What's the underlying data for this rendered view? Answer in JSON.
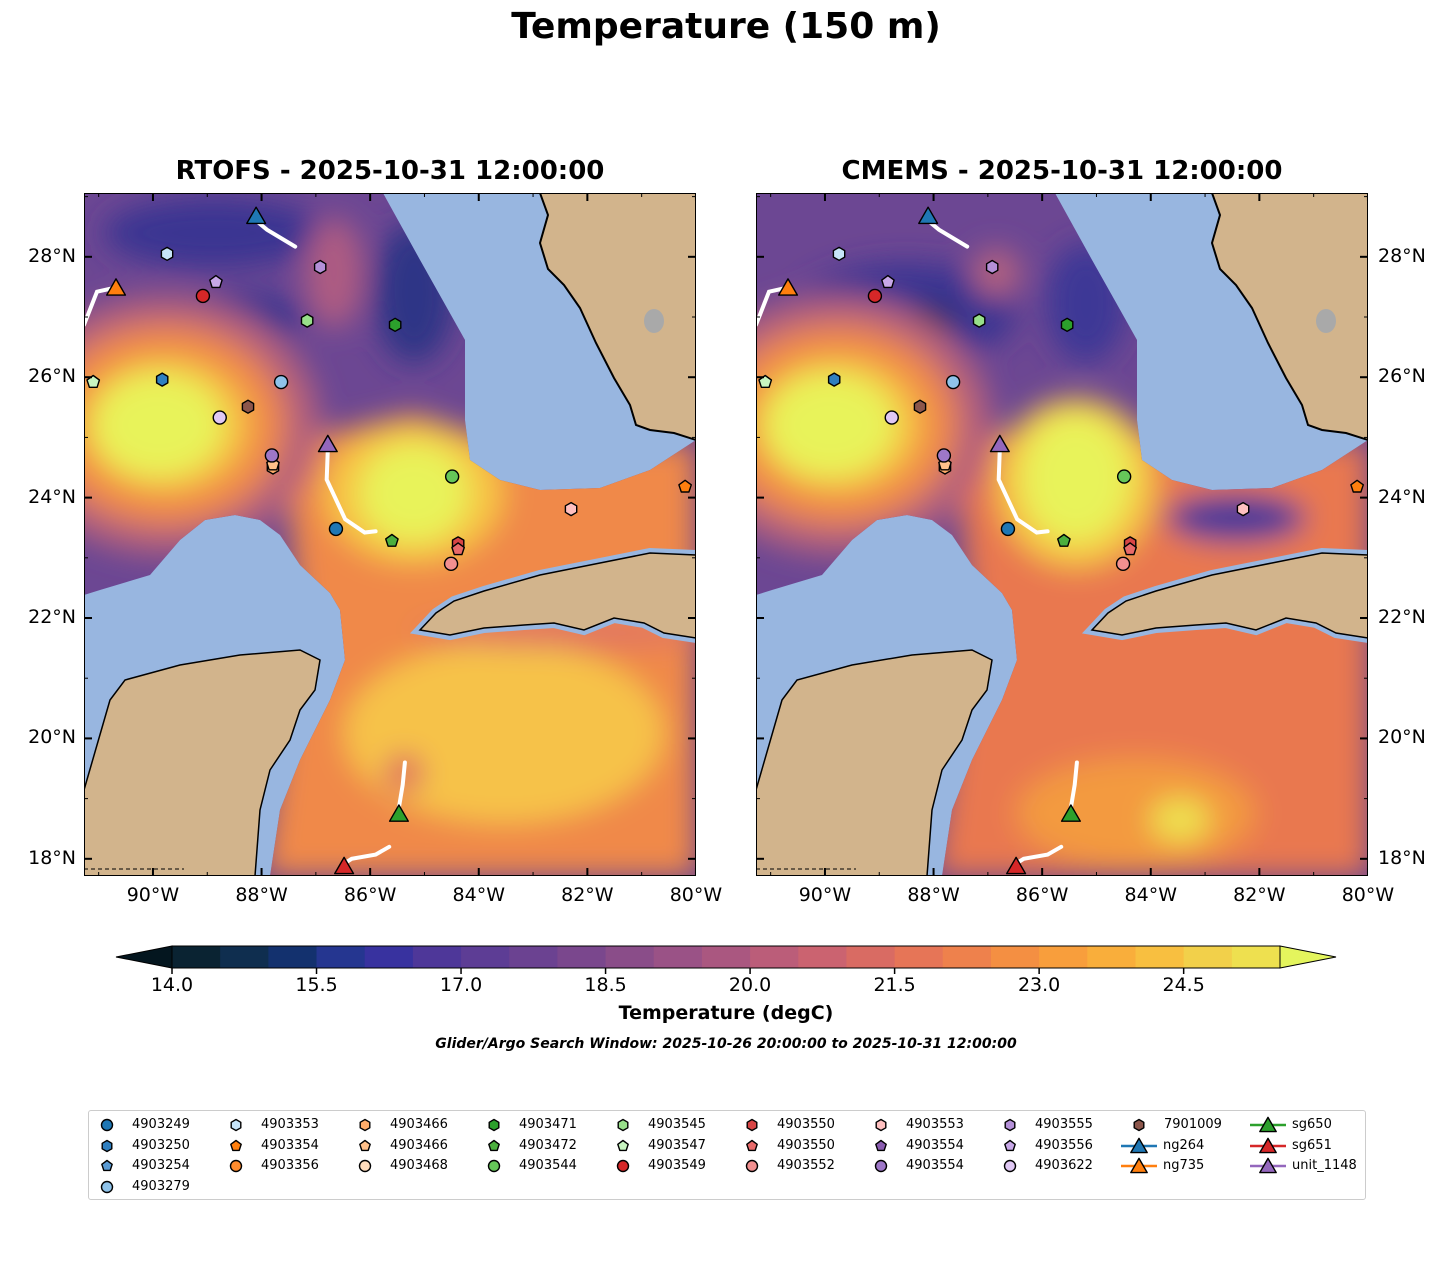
{
  "title": "Temperature (150 m)",
  "maps": [
    {
      "title": "RTOFS - 2025-10-31 12:00:00"
    },
    {
      "title": "CMEMS - 2025-10-31 12:00:00"
    }
  ],
  "axes": {
    "lon_labels": [
      "90°W",
      "88°W",
      "86°W",
      "84°W",
      "82°W",
      "80°W"
    ],
    "lon_values": [
      -90,
      -88,
      -86,
      -84,
      -82,
      -80
    ],
    "lat_labels": [
      "28°N",
      "26°N",
      "24°N",
      "22°N",
      "20°N",
      "18°N"
    ],
    "lat_values": [
      28,
      26,
      24,
      22,
      20,
      18
    ],
    "lon_range": [
      -91.27,
      -80
    ],
    "lat_range": [
      17.72,
      29.06
    ]
  },
  "colorbar": {
    "label": "Temperature (degC)",
    "min": 14.0,
    "max": 25.5,
    "step": 0.5,
    "tick_labels": [
      "14.0",
      "15.5",
      "17.0",
      "18.5",
      "20.0",
      "21.5",
      "23.0",
      "24.5"
    ],
    "colors": [
      "#0a2332",
      "#0f2e4f",
      "#13316e",
      "#253690",
      "#38329f",
      "#4e3799",
      "#5d3d95",
      "#6b4291",
      "#7a478d",
      "#8a4d89",
      "#9a5286",
      "#aa5780",
      "#bb5d79",
      "#cb6370",
      "#d96b63",
      "#e67557",
      "#ee814c",
      "#f48f42",
      "#f89e3c",
      "#f9ae3b",
      "#f8bf40",
      "#f2d04a",
      "#eee04f"
    ],
    "under_color": "#04161f",
    "over_color": "#e4f55d"
  },
  "search_window": "Glider/Argo Search Window: 2025-10-26 20:00:00 to 2025-10-31 12:00:00",
  "legend": {
    "columns": [
      [
        {
          "label": "4903249",
          "shape": "circle",
          "color": "#1f77b4"
        },
        {
          "label": "4903250",
          "shape": "hexagon",
          "color": "#2f7fc0"
        },
        {
          "label": "4903254",
          "shape": "pentagon",
          "color": "#5a9bd4"
        },
        {
          "label": "4903279",
          "shape": "circle",
          "color": "#8fc3ea"
        }
      ],
      [
        {
          "label": "4903353",
          "shape": "hexagon",
          "color": "#c6e4f8"
        },
        {
          "label": "4903354",
          "shape": "pentagon",
          "color": "#ff7f0e"
        },
        {
          "label": "4903356",
          "shape": "circle",
          "color": "#ff8c2e"
        }
      ],
      [
        {
          "label": "4903466",
          "shape": "hexagon",
          "color": "#ffac6a"
        },
        {
          "label": "4903466",
          "shape": "pentagon",
          "color": "#ffc08a"
        },
        {
          "label": "4903468",
          "shape": "circle",
          "color": "#ffdcbc"
        }
      ],
      [
        {
          "label": "4903471",
          "shape": "hexagon",
          "color": "#2ca02c"
        },
        {
          "label": "4903472",
          "shape": "pentagon",
          "color": "#4caf3e"
        },
        {
          "label": "4903544",
          "shape": "circle",
          "color": "#66c659"
        }
      ],
      [
        {
          "label": "4903545",
          "shape": "hexagon",
          "color": "#98df8a"
        },
        {
          "label": "4903547",
          "shape": "pentagon",
          "color": "#c8f5c0"
        },
        {
          "label": "4903549",
          "shape": "circle",
          "color": "#d62728"
        }
      ],
      [
        {
          "label": "4903550",
          "shape": "hexagon",
          "color": "#d84545"
        },
        {
          "label": "4903550",
          "shape": "pentagon",
          "color": "#e86a6a"
        },
        {
          "label": "4903552",
          "shape": "circle",
          "color": "#f29090"
        }
      ],
      [
        {
          "label": "4903553",
          "shape": "hexagon",
          "color": "#ffc0c0"
        },
        {
          "label": "4903554",
          "shape": "pentagon",
          "color": "#8a5cb0"
        },
        {
          "label": "4903554",
          "shape": "circle",
          "color": "#9e77c8"
        }
      ],
      [
        {
          "label": "4903555",
          "shape": "hexagon",
          "color": "#b490d8"
        },
        {
          "label": "4903556",
          "shape": "pentagon",
          "color": "#c8a8e8"
        },
        {
          "label": "4903622",
          "shape": "circle",
          "color": "#e0c8f4"
        }
      ],
      [
        {
          "label": "7901009",
          "shape": "hexagon",
          "color": "#8c564b"
        },
        {
          "label": "ng264",
          "shape": "triangle",
          "color": "#1f77b4",
          "line": true
        },
        {
          "label": "ng735",
          "shape": "triangle",
          "color": "#ff7f0e",
          "line": true
        }
      ],
      [
        {
          "label": "sg650",
          "shape": "triangle",
          "color": "#2ca02c",
          "line": true
        },
        {
          "label": "sg651",
          "shape": "triangle",
          "color": "#d62728",
          "line": true
        },
        {
          "label": "unit_1148",
          "shape": "triangle",
          "color": "#9467bd",
          "line": true
        }
      ]
    ]
  },
  "markers": [
    {
      "id": "4903353",
      "shape": "hexagon",
      "color": "#c6e4f8",
      "lon": -89.74,
      "lat": 28.05
    },
    {
      "id": "4903556",
      "shape": "pentagon",
      "color": "#c8a8e8",
      "lon": -88.84,
      "lat": 27.58
    },
    {
      "id": "4903549",
      "shape": "circle",
      "color": "#d62728",
      "lon": -89.08,
      "lat": 27.35
    },
    {
      "id": "4903555",
      "shape": "hexagon",
      "color": "#b490d8",
      "lon": -86.92,
      "lat": 27.83
    },
    {
      "id": "4903545",
      "shape": "hexagon",
      "color": "#98df8a",
      "lon": -87.16,
      "lat": 26.94
    },
    {
      "id": "4903471",
      "shape": "hexagon",
      "color": "#2ca02c",
      "lon": -85.54,
      "lat": 26.87
    },
    {
      "id": "4903250",
      "shape": "hexagon",
      "color": "#2f7fc0",
      "lon": -89.83,
      "lat": 25.96
    },
    {
      "id": "4903547",
      "shape": "pentagon",
      "color": "#c8f5c0",
      "lon": -91.1,
      "lat": 25.92
    },
    {
      "id": "4903279",
      "shape": "circle",
      "color": "#8fc3ea",
      "lon": -87.64,
      "lat": 25.92
    },
    {
      "id": "7901009",
      "shape": "hexagon",
      "color": "#8c564b",
      "lon": -88.25,
      "lat": 25.51
    },
    {
      "id": "4903622",
      "shape": "circle",
      "color": "#e0c8f4",
      "lon": -88.77,
      "lat": 25.33
    },
    {
      "id": "4903466",
      "shape": "hexagon",
      "color": "#ffac6a",
      "lon": -87.79,
      "lat": 24.5
    },
    {
      "id": "4903466",
      "shape": "pentagon",
      "color": "#ffc08a",
      "lon": -87.79,
      "lat": 24.55
    },
    {
      "id": "4903554",
      "shape": "circle",
      "color": "#9e77c8",
      "lon": -87.81,
      "lat": 24.7
    },
    {
      "id": "4903544",
      "shape": "circle",
      "color": "#66c659",
      "lon": -84.49,
      "lat": 24.35
    },
    {
      "id": "4903354",
      "shape": "pentagon",
      "color": "#ff7f0e",
      "lon": -80.2,
      "lat": 24.18
    },
    {
      "id": "4903553",
      "shape": "hexagon",
      "color": "#ffc0c0",
      "lon": -82.3,
      "lat": 23.81
    },
    {
      "id": "4903249",
      "shape": "circle",
      "color": "#1f77b4",
      "lon": -86.63,
      "lat": 23.48
    },
    {
      "id": "4903472",
      "shape": "pentagon",
      "color": "#4caf3e",
      "lon": -85.6,
      "lat": 23.28
    },
    {
      "id": "4903550",
      "shape": "hexagon",
      "color": "#d84545",
      "lon": -84.38,
      "lat": 23.24
    },
    {
      "id": "4903550",
      "shape": "pentagon",
      "color": "#e86a6a",
      "lon": -84.38,
      "lat": 23.14
    },
    {
      "id": "4903552",
      "shape": "circle",
      "color": "#f29090",
      "lon": -84.51,
      "lat": 22.9
    }
  ],
  "gliders": [
    {
      "id": "ng264",
      "color": "#1f77b4",
      "lon": -88.1,
      "lat": 28.68,
      "track": [
        [
          -88.1,
          28.6
        ],
        [
          -87.9,
          28.45
        ],
        [
          -87.38,
          28.17
        ]
      ]
    },
    {
      "id": "ng735",
      "color": "#ff7f0e",
      "lon": -90.68,
      "lat": 27.49,
      "track": [
        [
          -90.68,
          27.49
        ],
        [
          -91.03,
          27.42
        ],
        [
          -91.27,
          26.87
        ]
      ]
    },
    {
      "id": "unit_1148",
      "color": "#9467bd",
      "lon": -86.78,
      "lat": 24.89,
      "track": [
        [
          -86.78,
          24.8
        ],
        [
          -86.8,
          24.3
        ],
        [
          -86.46,
          23.64
        ],
        [
          -86.1,
          23.42
        ],
        [
          -85.9,
          23.44
        ]
      ]
    },
    {
      "id": "sg650",
      "color": "#2ca02c",
      "lon": -85.47,
      "lat": 18.75,
      "track": [
        [
          -85.47,
          18.85
        ],
        [
          -85.4,
          19.23
        ],
        [
          -85.36,
          19.6
        ]
      ]
    },
    {
      "id": "sg651",
      "color": "#d62728",
      "lon": -86.48,
      "lat": 17.88,
      "track": [
        [
          -86.48,
          17.92
        ],
        [
          -86.34,
          18.0
        ],
        [
          -85.9,
          18.07
        ],
        [
          -85.65,
          18.2
        ]
      ]
    }
  ]
}
